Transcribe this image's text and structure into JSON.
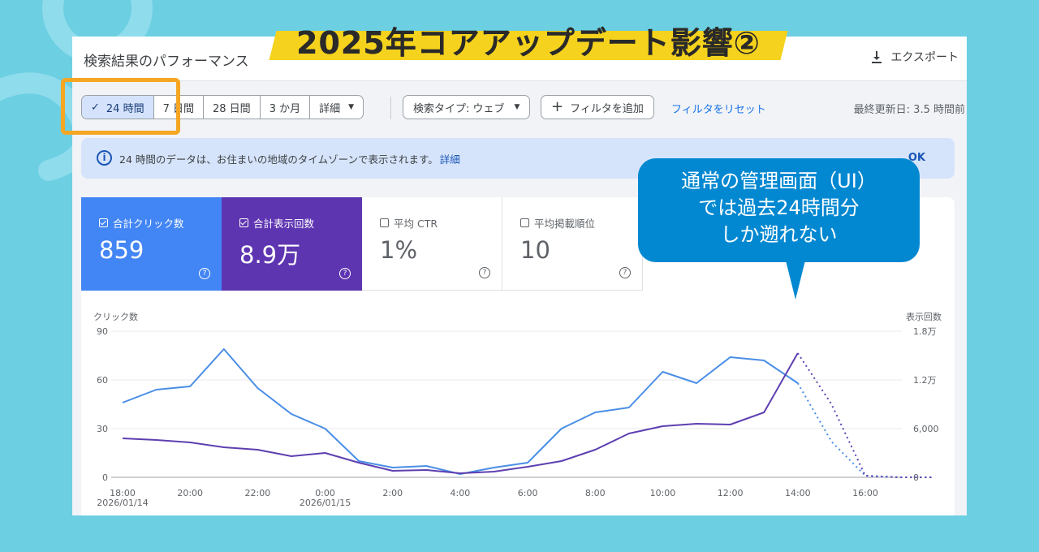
{
  "banner": {
    "text": "2025年コアアップデート影響②"
  },
  "topbar": {
    "title": "検索結果のパフォーマンス",
    "export_label": "エクスポート",
    "export_icon": "download-icon"
  },
  "filters": {
    "date_ranges": [
      {
        "label": "24 時間",
        "selected": true
      },
      {
        "label": "7 日間",
        "selected": false
      },
      {
        "label": "28 日間",
        "selected": false
      },
      {
        "label": "3 か月",
        "selected": false
      },
      {
        "label": "詳細",
        "selected": false
      }
    ],
    "search_type": "検索タイプ: ウェブ",
    "add_filter": "フィルタを追加",
    "reset": "フィルタをリセット",
    "last_updated": "最終更新日: 3.5 時間前"
  },
  "info": {
    "message": "24 時間のデータは、お住まいの地域のタイムゾーンで表示されます。",
    "link": "詳細",
    "ok": "OK"
  },
  "metrics": [
    {
      "label": "合計クリック数",
      "value": "859",
      "checked": true,
      "color": "#4285f4"
    },
    {
      "label": "合計表示回数",
      "value": "8.9万",
      "checked": true,
      "color": "#5e35b1"
    },
    {
      "label": "平均 CTR",
      "value": "1%",
      "checked": false
    },
    {
      "label": "平均掲載順位",
      "value": "10",
      "checked": false
    }
  ],
  "callout": {
    "lines": [
      "通常の管理画面（UI）",
      "では過去24時間分",
      "しか遡れない"
    ]
  },
  "chart_data": {
    "type": "line",
    "ylabel": "クリック数",
    "y2label": "表示回数",
    "ylim": [
      0,
      90
    ],
    "y2lim": [
      0,
      18000
    ],
    "y_ticks": [
      "0",
      "30",
      "60",
      "90"
    ],
    "y2_ticks": [
      "0",
      "6,000",
      "1.2万",
      "1.8万"
    ],
    "x_tick_labels": [
      {
        "hour": 18,
        "label": "18:00",
        "sub": "2026/01/14"
      },
      {
        "hour": 20,
        "label": "20:00"
      },
      {
        "hour": 22,
        "label": "22:00"
      },
      {
        "hour": 24,
        "label": "0:00",
        "sub": "2026/01/15"
      },
      {
        "hour": 26,
        "label": "2:00"
      },
      {
        "hour": 28,
        "label": "4:00"
      },
      {
        "hour": 30,
        "label": "6:00"
      },
      {
        "hour": 32,
        "label": "8:00"
      },
      {
        "hour": 34,
        "label": "10:00"
      },
      {
        "hour": 36,
        "label": "12:00"
      },
      {
        "hour": 38,
        "label": "14:00"
      },
      {
        "hour": 40,
        "label": "16:00"
      }
    ],
    "series": [
      {
        "name": "クリック数",
        "axis": "left",
        "color": "#4a8ee6",
        "hours": [
          18,
          19,
          20,
          21,
          22,
          23,
          24,
          25,
          26,
          27,
          28,
          29,
          30,
          31,
          32,
          33,
          34,
          35,
          36,
          37,
          38
        ],
        "values": [
          46,
          54,
          56,
          79,
          55,
          39,
          30,
          10,
          6,
          7,
          2,
          6,
          9,
          30,
          40,
          43,
          65,
          58,
          74,
          72,
          58
        ],
        "projected_hours": [
          38,
          39,
          40,
          41,
          42
        ],
        "projected_values": [
          58,
          22,
          1,
          0,
          0
        ]
      },
      {
        "name": "表示回数",
        "axis": "right",
        "color": "#5e3fb0",
        "hours": [
          18,
          19,
          20,
          21,
          22,
          23,
          24,
          25,
          26,
          27,
          28,
          29,
          30,
          31,
          32,
          33,
          34,
          35,
          36,
          37,
          38
        ],
        "values": [
          4800,
          4600,
          4300,
          3700,
          3400,
          2600,
          3000,
          1800,
          800,
          900,
          500,
          700,
          1300,
          2000,
          3400,
          5400,
          6300,
          6600,
          6500,
          8000,
          15300
        ],
        "projected_hours": [
          38,
          39,
          40,
          41,
          42
        ],
        "projected_values": [
          15300,
          9000,
          200,
          0,
          0
        ]
      }
    ]
  }
}
